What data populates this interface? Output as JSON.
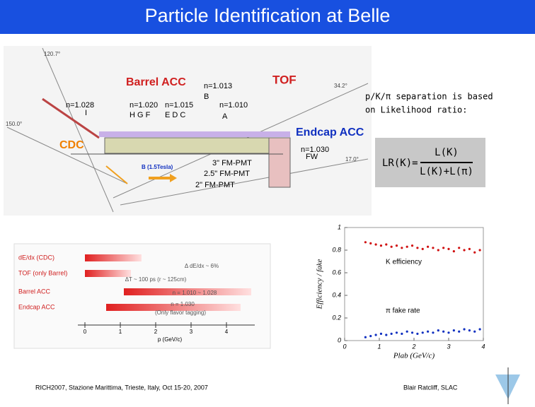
{
  "header": {
    "title": "Particle Identification at Belle"
  },
  "detector": {
    "labels": [
      "120.7°",
      "Barrel ACC",
      "n=1.013",
      "TOF",
      "34.2°",
      "B",
      "n=1.028",
      "n=1.020",
      "n=1.015",
      "n=1.010",
      "I",
      "H G F",
      "E D C",
      "A",
      "150.0°",
      "Endcap ACC",
      "CDC",
      "n=1.030",
      "FW",
      "17.0°",
      "B (1.5Tesla)",
      "3\" FM-PMT",
      "2.5\" FM-PMT",
      "2\" FM-PMT"
    ]
  },
  "likelihood": {
    "text_lines": [
      "p/K/π separation is based",
      "on Likelihood ratio:"
    ],
    "lhs": "LR(K)=",
    "numerator": "L(K)",
    "denominator": "L(K)+L(π)"
  },
  "coverage": {
    "type": "range",
    "categories": [
      "dE/dx (CDC)",
      "TOF (only Barrel)",
      "Barrel ACC",
      "Endcap ACC"
    ],
    "x_ranges": [
      [
        0.0,
        1.6
      ],
      [
        0.0,
        1.3
      ],
      [
        1.1,
        4.7
      ],
      [
        0.6,
        4.4
      ]
    ],
    "annotations": [
      "Δ dE/dx ~ 6%",
      "ΔT ~ 100 ps (r ~ 125cm)",
      "n = 1.010 ~ 1.028",
      "n = 1.030",
      "(Only flavor tagging)"
    ],
    "xlim": [
      -0.2,
      4.8
    ],
    "xticks": [
      0,
      1,
      2,
      3,
      4
    ],
    "xlabel": "p (GeV/c)"
  },
  "efficiency": {
    "type": "scatter",
    "ylabel": "Efficiency / fake",
    "xlabel": "Plab (GeV/c)",
    "xlim": [
      0,
      4
    ],
    "ylim": [
      0,
      1
    ],
    "xticks": [
      0,
      1,
      2,
      3,
      4
    ],
    "yticks": [
      0,
      0.2,
      0.4,
      0.6,
      0.8,
      1
    ],
    "series": [
      {
        "name": "K efficiency",
        "color": "#d01010",
        "x": [
          0.6,
          0.75,
          0.9,
          1.05,
          1.2,
          1.35,
          1.5,
          1.65,
          1.8,
          1.95,
          2.1,
          2.25,
          2.4,
          2.55,
          2.7,
          2.85,
          3.0,
          3.15,
          3.3,
          3.45,
          3.6,
          3.75,
          3.9
        ],
        "values": [
          0.87,
          0.86,
          0.85,
          0.84,
          0.85,
          0.83,
          0.84,
          0.82,
          0.83,
          0.84,
          0.82,
          0.81,
          0.83,
          0.82,
          0.8,
          0.82,
          0.81,
          0.79,
          0.82,
          0.8,
          0.81,
          0.78,
          0.8
        ]
      },
      {
        "name": "π fake rate",
        "color": "#1030c0",
        "x": [
          0.6,
          0.75,
          0.9,
          1.05,
          1.2,
          1.35,
          1.5,
          1.65,
          1.8,
          1.95,
          2.1,
          2.25,
          2.4,
          2.55,
          2.7,
          2.85,
          3.0,
          3.15,
          3.3,
          3.45,
          3.6,
          3.75,
          3.9
        ],
        "values": [
          0.03,
          0.04,
          0.05,
          0.06,
          0.05,
          0.06,
          0.07,
          0.06,
          0.08,
          0.07,
          0.06,
          0.07,
          0.08,
          0.07,
          0.09,
          0.08,
          0.07,
          0.09,
          0.08,
          0.1,
          0.09,
          0.08,
          0.1
        ]
      }
    ]
  },
  "footer": {
    "left": "RICH2007, Stazione Marittima, Trieste, Italy, Oct 15-20, 2007",
    "right": "Blair Ratcliff, SLAC"
  }
}
